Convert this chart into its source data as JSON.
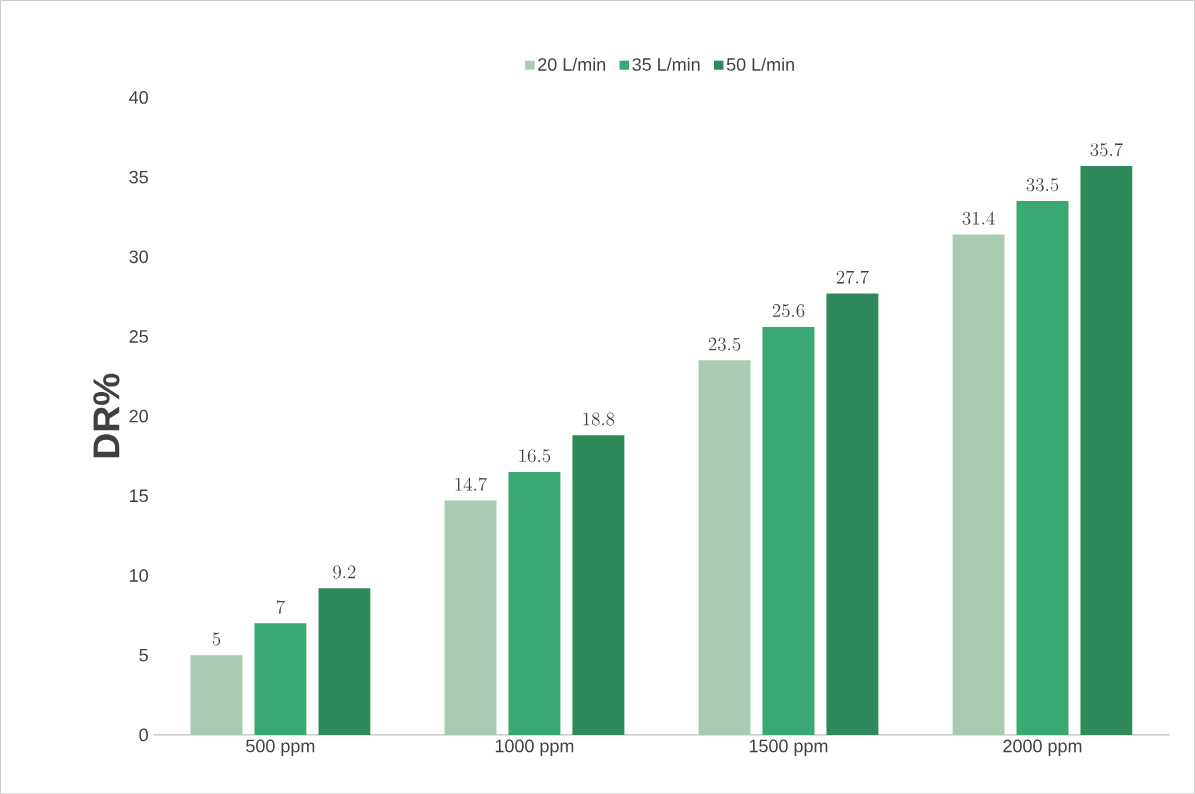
{
  "chart_data": {
    "type": "bar",
    "ylabel": "DR%",
    "categories": [
      "500 ppm",
      "1000 ppm",
      "1500 ppm",
      "2000 ppm"
    ],
    "series": [
      {
        "name": "20 L/min",
        "color": "#a8cbb2",
        "values": [
          5,
          14.7,
          23.5,
          31.4
        ]
      },
      {
        "name": "35 L/min",
        "color": "#3aa872",
        "values": [
          7,
          16.5,
          25.6,
          33.5
        ]
      },
      {
        "name": "50 L/min",
        "color": "#2e8a5b",
        "values": [
          9.2,
          18.8,
          27.7,
          35.7
        ]
      }
    ],
    "ylim": [
      0,
      40
    ],
    "yticks": [
      0,
      5,
      10,
      15,
      20,
      25,
      30,
      35,
      40
    ],
    "data_labels": true,
    "legend": "top"
  }
}
